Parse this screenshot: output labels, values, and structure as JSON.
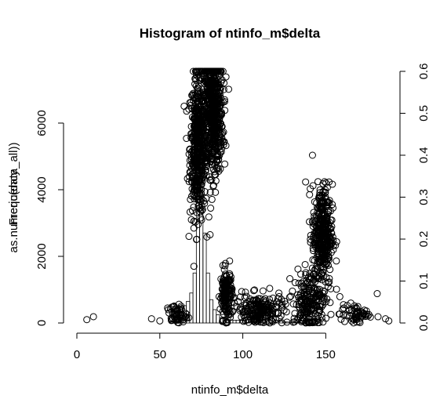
{
  "chart_data": {
    "type": "bar",
    "title": "Histogram of ntinfo_m$delta",
    "xlabel": "ntinfo_m$delta",
    "ylabel_left_a": "Frequency",
    "ylabel_left_b": "as.numeric(data_all))",
    "xlim": [
      0,
      190
    ],
    "ylim": [
      0,
      6000
    ],
    "y2lim": [
      0,
      0.6
    ],
    "x_ticks": [
      "0",
      "50",
      "100",
      "150"
    ],
    "x_tick_values": [
      0,
      50,
      100,
      150
    ],
    "y_ticks": [
      "0",
      "2000",
      "4000",
      "6000"
    ],
    "y_tick_values": [
      0,
      2000,
      4000,
      6000
    ],
    "y2_ticks": [
      "0.0",
      "0.1",
      "0.2",
      "0.3",
      "0.4",
      "0.5",
      "0.6"
    ],
    "y2_tick_values": [
      0.0,
      0.1,
      0.2,
      0.3,
      0.4,
      0.5,
      0.6
    ],
    "histogram": {
      "breaks_start": 0,
      "bin_width": 2,
      "counts": [
        0,
        0,
        0,
        0,
        0,
        0,
        0,
        0,
        0,
        0,
        0,
        0,
        0,
        0,
        0,
        0,
        0,
        0,
        0,
        0,
        0,
        0,
        0,
        0,
        0,
        0,
        0,
        0,
        30,
        60,
        120,
        220,
        520,
        650,
        900,
        1500,
        4200,
        6000,
        2700,
        1500,
        700,
        400,
        250,
        160,
        120,
        100,
        90,
        85,
        80,
        80,
        85,
        90,
        100,
        130,
        160,
        260,
        420,
        520,
        350,
        180,
        90,
        60,
        40,
        30,
        25,
        20,
        15,
        10,
        5,
        3,
        2,
        1,
        0,
        0,
        0
      ]
    },
    "scatter_clusters": [
      {
        "x_center": 73,
        "x_spread": 4,
        "y_center": 0.42,
        "y_spread": 0.14,
        "n": 500
      },
      {
        "x_center": 82,
        "x_spread": 5,
        "y_center": 0.5,
        "y_spread": 0.12,
        "n": 600
      },
      {
        "x_center": 90,
        "x_spread": 3,
        "y_center": 0.07,
        "y_spread": 0.05,
        "n": 150
      },
      {
        "x_center": 110,
        "x_spread": 12,
        "y_center": 0.03,
        "y_spread": 0.03,
        "n": 200
      },
      {
        "x_center": 148,
        "x_spread": 5,
        "y_center": 0.21,
        "y_spread": 0.1,
        "n": 400
      },
      {
        "x_center": 140,
        "x_spread": 8,
        "y_center": 0.05,
        "y_spread": 0.06,
        "n": 200
      },
      {
        "x_center": 60,
        "x_spread": 5,
        "y_center": 0.02,
        "y_spread": 0.02,
        "n": 60
      },
      {
        "x_center": 168,
        "x_spread": 8,
        "y_center": 0.02,
        "y_spread": 0.02,
        "n": 60
      }
    ],
    "scatter_outliers": [
      {
        "x": 6,
        "y": 0.008
      },
      {
        "x": 10,
        "y": 0.015
      },
      {
        "x": 45,
        "y": 0.01
      },
      {
        "x": 50,
        "y": 0.005
      },
      {
        "x": 142,
        "y": 0.4
      },
      {
        "x": 181,
        "y": 0.07
      },
      {
        "x": 188,
        "y": 0.005
      },
      {
        "x": 186,
        "y": 0.01
      },
      {
        "x": 176,
        "y": 0.02
      }
    ]
  }
}
